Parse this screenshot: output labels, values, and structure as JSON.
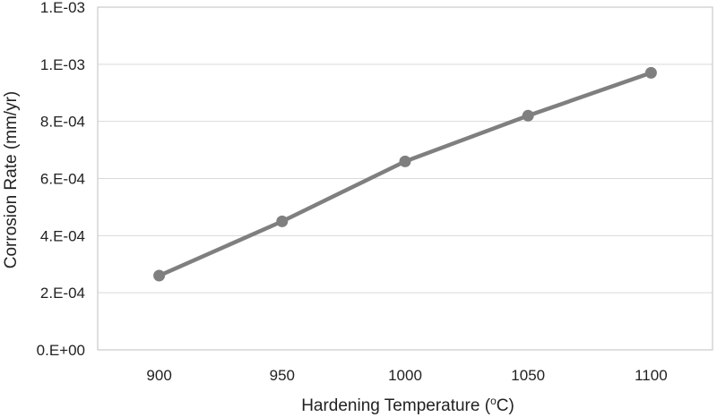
{
  "chart_data": {
    "type": "line",
    "x": [
      900,
      950,
      1000,
      1050,
      1100
    ],
    "categories": [
      "900",
      "950",
      "1000",
      "1050",
      "1100"
    ],
    "series": [
      {
        "values": [
          0.00026,
          0.00045,
          0.00066,
          0.00082,
          0.00097
        ]
      }
    ],
    "xlabel": "Hardening Temperature (",
    "xlabel_sup": "o",
    "xlabel_suffix": "C)",
    "ylabel": "Corrosion Rate (mm/yr)",
    "ylim": [
      0,
      0.0012
    ],
    "yticks": [
      0,
      0.0002,
      0.0004,
      0.0006,
      0.0008,
      0.001,
      0.0012
    ],
    "ytick_labels": [
      "0.E+00",
      "2.E-04",
      "4.E-04",
      "6.E-04",
      "8.E-04",
      "1.E-03",
      "1.E-03"
    ],
    "grid": true,
    "series_color": "#7f7f7f",
    "grid_color": "#d9d9d9"
  }
}
